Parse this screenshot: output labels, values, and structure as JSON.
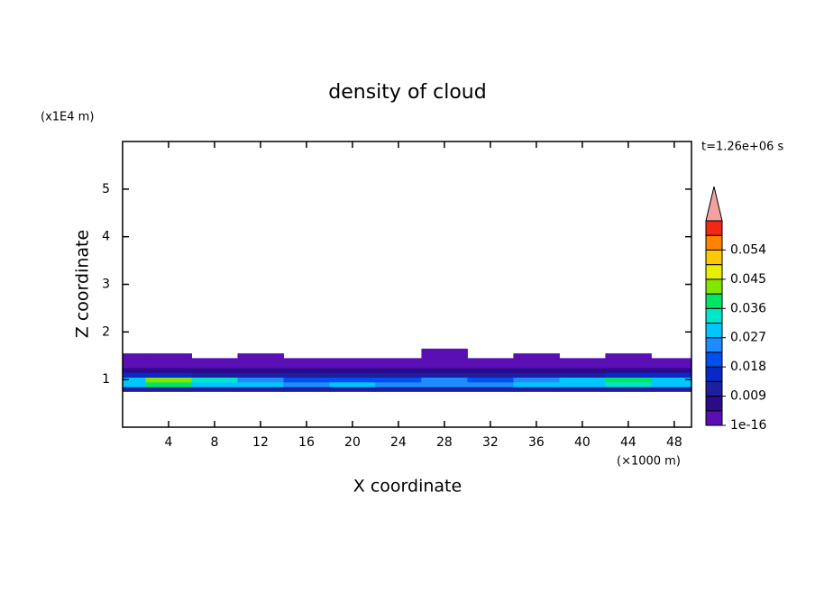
{
  "chart_data": {
    "type": "contour",
    "title": "density of cloud",
    "x_label": "X coordinate",
    "y_label": "Z coordinate",
    "x_unit": "(×1000 m)",
    "y_unit": "(x1E4 m)",
    "time_label": "t=1.26e+06 s",
    "xlim": [
      0,
      49.5
    ],
    "ylim": [
      0,
      6
    ],
    "xticks": [
      4,
      8,
      12,
      16,
      20,
      24,
      28,
      32,
      36,
      40,
      44,
      48
    ],
    "yticks": [
      1,
      2,
      3,
      4,
      5
    ],
    "x": [
      0,
      4,
      8,
      12,
      16,
      20,
      24,
      28,
      32,
      36,
      40,
      44,
      48
    ],
    "y": [
      0.7,
      0.8,
      0.9,
      1.0,
      1.1,
      1.2,
      1.3,
      1.4,
      1.5,
      1.6
    ],
    "z": [
      [
        0,
        0,
        0,
        0,
        0,
        0,
        0,
        0,
        0,
        0,
        0,
        0,
        0
      ],
      [
        0.012,
        0.013,
        0.011,
        0.012,
        0.01,
        0.012,
        0.011,
        0.013,
        0.012,
        0.011,
        0.012,
        0.013,
        0.012
      ],
      [
        0.028,
        0.036,
        0.03,
        0.027,
        0.025,
        0.027,
        0.024,
        0.026,
        0.025,
        0.028,
        0.027,
        0.034,
        0.029
      ],
      [
        0.03,
        0.041,
        0.032,
        0.024,
        0.02,
        0.022,
        0.021,
        0.023,
        0.022,
        0.026,
        0.03,
        0.04,
        0.031
      ],
      [
        0.014,
        0.016,
        0.013,
        0.011,
        0.01,
        0.012,
        0.011,
        0.01,
        0.012,
        0.011,
        0.013,
        0.015,
        0.014
      ],
      [
        0.006,
        0.007,
        0.006,
        0.005,
        0.005,
        0.006,
        0.005,
        0.006,
        0.005,
        0.006,
        0.007,
        0.006,
        0.006
      ],
      [
        0.003,
        0.003,
        0.002,
        0.003,
        0.002,
        0.003,
        0.002,
        0.002,
        0.003,
        0.002,
        0.003,
        0.003,
        0.003
      ],
      [
        0.001,
        0.001,
        0.0008,
        0.001,
        0.0007,
        0.0008,
        0.0009,
        0.0006,
        0.0008,
        0.0009,
        0.001,
        0.001,
        0.001
      ],
      [
        0.0004,
        0.0005,
        0,
        0.0003,
        0,
        0,
        0,
        0.0004,
        0,
        0.0003,
        0,
        0.0004,
        0
      ],
      [
        0,
        0,
        0,
        0,
        0,
        0,
        0,
        0.0004,
        0,
        0,
        0,
        0,
        0
      ]
    ],
    "levels": [
      1e-16,
      0.0045,
      0.009,
      0.0135,
      0.018,
      0.0225,
      0.027,
      0.0315,
      0.036,
      0.0405,
      0.045,
      0.0495,
      0.054,
      0.0585,
      0.063
    ],
    "colors": [
      "#5a0fb4",
      "#2d0a8c",
      "#1e1ea0",
      "#0a28c8",
      "#0050f0",
      "#1e8cff",
      "#00c8ff",
      "#00e6c8",
      "#00e664",
      "#82e600",
      "#e6f000",
      "#ffc800",
      "#ff8200",
      "#f02814"
    ],
    "extend_color": "#f4a0a0",
    "cticks": [
      1e-16,
      0.009,
      0.018,
      0.027,
      0.036,
      0.045,
      0.054
    ]
  }
}
